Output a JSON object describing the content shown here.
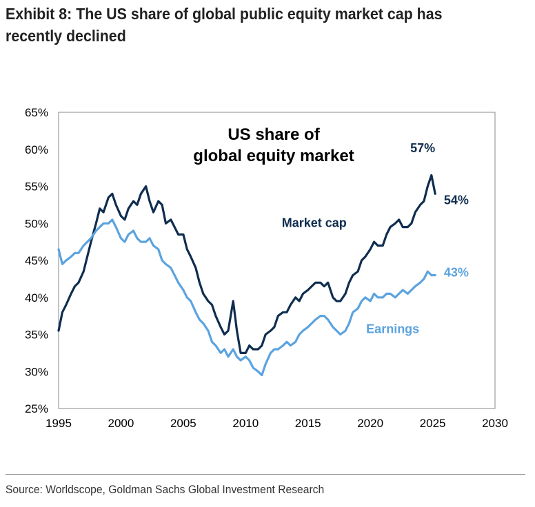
{
  "header": {
    "title_line1": "Exhibit 8: The US share of global public equity market cap has",
    "title_line2": "recently declined"
  },
  "footer": {
    "source": "Source: Worldscope, Goldman Sachs Global Investment Research"
  },
  "colors": {
    "market_cap": "#0f2d4f",
    "earnings": "#5ba3df",
    "axis": "#888888",
    "text": "#000000"
  },
  "chart_data": {
    "type": "line",
    "title": "US share of global equity market",
    "title_lines": [
      "US share of",
      "global equity market"
    ],
    "xlabel": "",
    "ylabel": "",
    "xlim": [
      1995,
      2030
    ],
    "ylim": [
      25,
      65
    ],
    "x_ticks": [
      1995,
      2000,
      2005,
      2010,
      2015,
      2020,
      2025,
      2030
    ],
    "x_tick_labels": [
      "1995",
      "2000",
      "2005",
      "2010",
      "2015",
      "2020",
      "2025",
      "2030"
    ],
    "y_ticks": [
      25,
      30,
      35,
      40,
      45,
      50,
      55,
      60,
      65
    ],
    "y_tick_labels": [
      "25%",
      "30%",
      "35%",
      "40%",
      "45%",
      "50%",
      "55%",
      "60%",
      "65%"
    ],
    "grid": false,
    "series": [
      {
        "name": "Market cap",
        "label": "Market cap",
        "color": "#0f2d4f",
        "x": [
          1995.0,
          1995.3,
          1995.6,
          1996.0,
          1996.3,
          1996.6,
          1997.0,
          1997.3,
          1997.6,
          1998.0,
          1998.3,
          1998.6,
          1999.0,
          1999.3,
          1999.6,
          2000.0,
          2000.3,
          2000.6,
          2001.0,
          2001.3,
          2001.6,
          2002.0,
          2002.3,
          2002.6,
          2003.0,
          2003.3,
          2003.6,
          2004.0,
          2004.3,
          2004.6,
          2005.0,
          2005.3,
          2005.6,
          2006.0,
          2006.3,
          2006.6,
          2007.0,
          2007.3,
          2007.6,
          2008.0,
          2008.3,
          2008.6,
          2009.0,
          2009.3,
          2009.6,
          2010.0,
          2010.3,
          2010.6,
          2011.0,
          2011.3,
          2011.6,
          2012.0,
          2012.3,
          2012.6,
          2013.0,
          2013.3,
          2013.6,
          2014.0,
          2014.3,
          2014.6,
          2015.0,
          2015.3,
          2015.6,
          2016.0,
          2016.3,
          2016.6,
          2017.0,
          2017.3,
          2017.6,
          2018.0,
          2018.3,
          2018.6,
          2019.0,
          2019.3,
          2019.6,
          2020.0,
          2020.3,
          2020.6,
          2021.0,
          2021.3,
          2021.6,
          2022.0,
          2022.3,
          2022.6,
          2023.0,
          2023.3,
          2023.6,
          2024.0,
          2024.3,
          2024.6,
          2024.9,
          2025.2
        ],
        "values": [
          35.5,
          38.0,
          39.0,
          40.5,
          41.5,
          42.0,
          43.5,
          45.5,
          47.5,
          50.0,
          52.0,
          51.5,
          53.5,
          54.0,
          52.5,
          51.0,
          50.5,
          52.0,
          53.0,
          52.5,
          54.0,
          55.0,
          53.0,
          51.5,
          53.0,
          52.5,
          50.0,
          50.5,
          49.5,
          48.5,
          48.5,
          46.5,
          45.5,
          44.0,
          42.0,
          40.5,
          39.5,
          39.0,
          37.5,
          36.0,
          35.0,
          35.5,
          39.5,
          35.5,
          32.5,
          32.5,
          33.5,
          33.0,
          33.0,
          33.5,
          35.0,
          35.5,
          36.0,
          37.5,
          38.0,
          38.0,
          39.0,
          40.0,
          39.5,
          40.5,
          41.0,
          41.5,
          42.0,
          42.0,
          41.5,
          42.0,
          40.0,
          39.5,
          39.5,
          40.5,
          42.0,
          43.0,
          43.5,
          45.0,
          45.5,
          46.5,
          47.5,
          47.0,
          47.0,
          48.5,
          49.5,
          50.0,
          50.5,
          49.5,
          49.5,
          50.0,
          51.5,
          52.5,
          53.0,
          55.0,
          56.5,
          54.0
        ]
      },
      {
        "name": "Earnings",
        "label": "Earnings",
        "color": "#5ba3df",
        "x": [
          1995.0,
          1995.3,
          1995.6,
          1996.0,
          1996.3,
          1996.6,
          1997.0,
          1997.3,
          1997.6,
          1998.0,
          1998.3,
          1998.6,
          1999.0,
          1999.3,
          1999.6,
          2000.0,
          2000.3,
          2000.6,
          2001.0,
          2001.3,
          2001.6,
          2002.0,
          2002.3,
          2002.6,
          2003.0,
          2003.3,
          2003.6,
          2004.0,
          2004.3,
          2004.6,
          2005.0,
          2005.3,
          2005.6,
          2006.0,
          2006.3,
          2006.6,
          2007.0,
          2007.3,
          2007.6,
          2008.0,
          2008.3,
          2008.6,
          2009.0,
          2009.3,
          2009.6,
          2010.0,
          2010.3,
          2010.6,
          2011.0,
          2011.3,
          2011.6,
          2012.0,
          2012.3,
          2012.6,
          2013.0,
          2013.3,
          2013.6,
          2014.0,
          2014.3,
          2014.6,
          2015.0,
          2015.3,
          2015.6,
          2016.0,
          2016.3,
          2016.6,
          2017.0,
          2017.3,
          2017.6,
          2018.0,
          2018.3,
          2018.6,
          2019.0,
          2019.3,
          2019.6,
          2020.0,
          2020.3,
          2020.6,
          2021.0,
          2021.3,
          2021.6,
          2022.0,
          2022.3,
          2022.6,
          2023.0,
          2023.3,
          2023.6,
          2024.0,
          2024.3,
          2024.6,
          2024.9,
          2025.2
        ],
        "values": [
          46.5,
          44.5,
          45.0,
          45.5,
          46.0,
          46.0,
          47.0,
          47.5,
          48.0,
          49.0,
          49.5,
          50.0,
          50.0,
          50.5,
          49.5,
          48.0,
          47.5,
          48.5,
          49.0,
          48.0,
          47.5,
          47.5,
          48.0,
          47.0,
          46.5,
          45.0,
          44.5,
          44.0,
          43.0,
          42.0,
          41.0,
          40.0,
          39.5,
          38.0,
          37.0,
          36.5,
          35.5,
          34.0,
          33.5,
          32.5,
          33.0,
          32.0,
          33.0,
          32.0,
          31.5,
          32.0,
          31.5,
          30.5,
          30.0,
          29.5,
          31.0,
          32.5,
          33.0,
          33.0,
          33.5,
          34.0,
          33.5,
          34.0,
          35.0,
          35.5,
          36.0,
          36.5,
          37.0,
          37.5,
          37.5,
          37.0,
          36.0,
          35.5,
          35.0,
          35.5,
          36.5,
          38.0,
          38.5,
          39.5,
          40.0,
          39.5,
          40.5,
          40.0,
          40.0,
          40.5,
          40.5,
          40.0,
          40.5,
          41.0,
          40.5,
          41.0,
          41.5,
          42.0,
          42.5,
          43.5,
          43.0,
          43.0
        ]
      }
    ],
    "annotations": [
      {
        "text": "57%",
        "x": 2024.2,
        "y": 59.6,
        "series": "Market cap",
        "anchor": "middle"
      },
      {
        "text": "54%",
        "x": 2025.9,
        "y": 52.6,
        "series": "Market cap",
        "anchor": "start"
      },
      {
        "text": "43%",
        "x": 2025.9,
        "y": 42.8,
        "series": "Earnings",
        "anchor": "start"
      }
    ],
    "series_labels": [
      {
        "text": "Market cap",
        "x": 2015.5,
        "y": 49.5,
        "series": "Market cap"
      },
      {
        "text": "Earnings",
        "x": 2021.8,
        "y": 35.2,
        "series": "Earnings"
      }
    ]
  }
}
